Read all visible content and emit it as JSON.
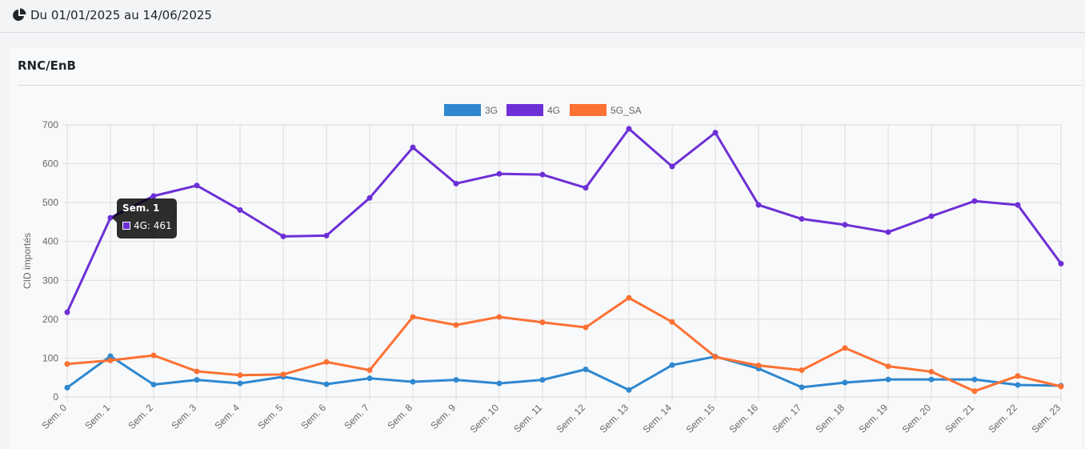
{
  "header": {
    "period": "Du 01/01/2025 au 14/06/2025",
    "icon": "pie-chart-icon"
  },
  "card": {
    "title": "RNC/EnB"
  },
  "tooltip": {
    "title": "Sem. 1",
    "body": "4G: 461",
    "color": "#6d2fd6"
  },
  "chart_data": {
    "type": "line",
    "title": "",
    "xlabel": "",
    "ylabel": "CID importés",
    "ylim": [
      0,
      700
    ],
    "yticks": [
      0,
      100,
      200,
      300,
      400,
      500,
      600,
      700
    ],
    "grid": true,
    "legend_position": "top",
    "categories": [
      "Sem. 0",
      "Sem. 1",
      "Sem. 2",
      "Sem. 3",
      "Sem. 4",
      "Sem. 5",
      "Sem. 6",
      "Sem. 7",
      "Sem. 8",
      "Sem. 9",
      "Sem. 10",
      "Sem. 11",
      "Sem. 12",
      "Sem. 13",
      "Sem. 14",
      "Sem. 15",
      "Sem. 16",
      "Sem. 17",
      "Sem. 18",
      "Sem. 19",
      "Sem. 20",
      "Sem. 21",
      "Sem. 22",
      "Sem. 23"
    ],
    "series": [
      {
        "name": "3G",
        "color": "#2f88d0",
        "values": [
          24,
          105,
          32,
          44,
          35,
          52,
          33,
          48,
          39,
          44,
          35,
          44,
          71,
          18,
          82,
          104,
          73,
          25,
          37,
          45,
          45,
          45,
          31,
          29
        ]
      },
      {
        "name": "4G",
        "color": "#6d2fd6",
        "values": [
          218,
          461,
          517,
          544,
          481,
          413,
          415,
          512,
          642,
          549,
          574,
          572,
          538,
          690,
          593,
          680,
          494,
          458,
          443,
          424,
          465,
          504,
          494,
          343
        ]
      },
      {
        "name": "5G_SA",
        "color": "#fd7133",
        "values": [
          85,
          94,
          107,
          66,
          56,
          58,
          90,
          69,
          206,
          185,
          206,
          192,
          179,
          255,
          193,
          103,
          81,
          69,
          126,
          79,
          65,
          15,
          54,
          27
        ]
      }
    ]
  }
}
